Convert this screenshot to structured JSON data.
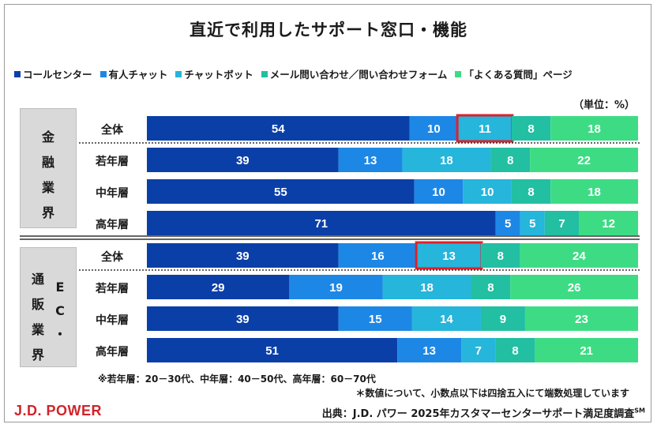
{
  "title": "直近で利用したサポート窓口・機能",
  "unit_label": "（単位：%）",
  "industries": [
    {
      "label": "金融業界",
      "chars": [
        "金",
        "融",
        "業",
        "界"
      ]
    },
    {
      "label": "通販・EC業界",
      "chars_main": [
        "通",
        "販",
        "業",
        "界"
      ],
      "chars_side": [
        "E",
        "C",
        "・"
      ]
    }
  ],
  "chart_data": {
    "type": "bar",
    "orientation": "horizontal-stacked",
    "unit": "%",
    "series": [
      {
        "name": "コールセンター",
        "color": "#0b3fa8"
      },
      {
        "name": "有人チャット",
        "color": "#1d87e6"
      },
      {
        "name": "チャットボット",
        "color": "#26b5db"
      },
      {
        "name": "メール問い合わせ／問い合わせフォーム",
        "color": "#22bfa2"
      },
      {
        "name": "「よくある質問」ページ",
        "color": "#3ddc84"
      }
    ],
    "groups": [
      {
        "industry": "金融業界",
        "rows": [
          {
            "label": "全体",
            "values": [
              54,
              10,
              11,
              8,
              18
            ],
            "highlight": 2
          },
          {
            "label": "若年層",
            "values": [
              39,
              13,
              18,
              8,
              22
            ]
          },
          {
            "label": "中年層",
            "values": [
              55,
              10,
              10,
              8,
              18
            ]
          },
          {
            "label": "高年層",
            "values": [
              71,
              5,
              5,
              7,
              12
            ]
          }
        ]
      },
      {
        "industry": "通販・EC業界",
        "rows": [
          {
            "label": "全体",
            "values": [
              39,
              16,
              13,
              8,
              24
            ],
            "highlight": 2
          },
          {
            "label": "若年層",
            "values": [
              29,
              19,
              18,
              8,
              26
            ]
          },
          {
            "label": "中年層",
            "values": [
              39,
              15,
              14,
              9,
              23
            ]
          },
          {
            "label": "高年層",
            "values": [
              51,
              13,
              7,
              8,
              21
            ]
          }
        ]
      }
    ],
    "highlight_color": "#e0202a"
  },
  "notes": {
    "age_groups": "※若年層：20－30代、中年層：40－50代、高年層：60－70代",
    "rounding": "＊数値について、小数点以下は四捨五入にて端数処理しています"
  },
  "footer": {
    "logo": "J.D. POWER",
    "source": "出典：J.D. パワー 2025年カスタマーセンターサポート満足度調査",
    "source_mark": "SM"
  }
}
